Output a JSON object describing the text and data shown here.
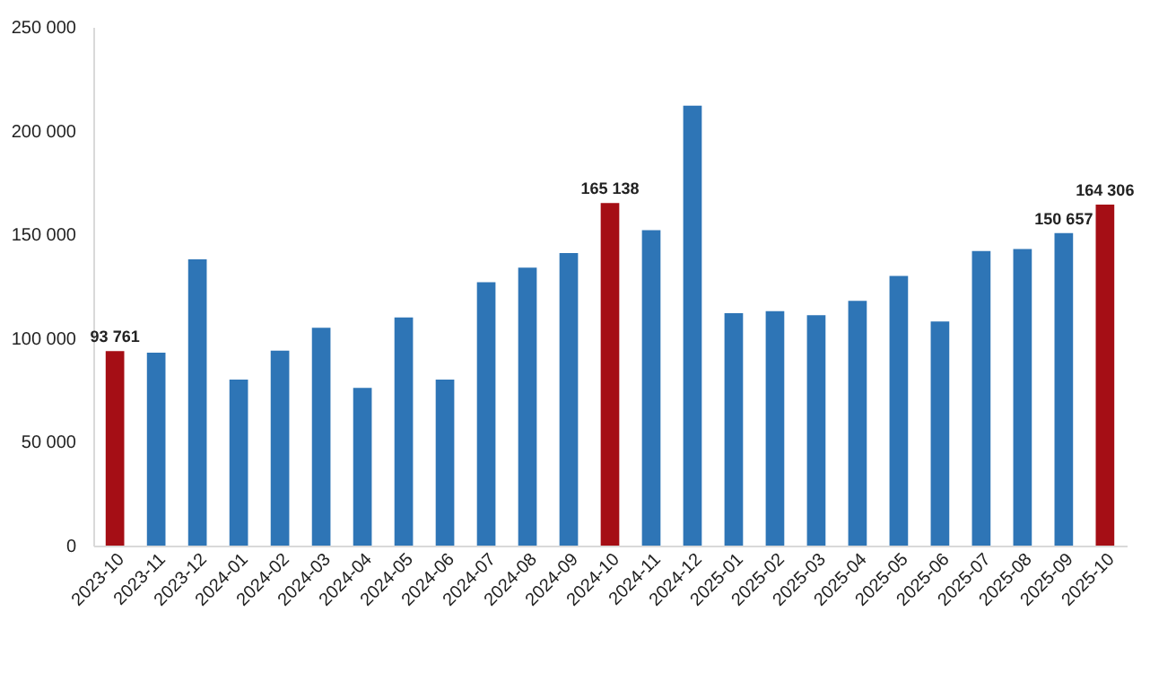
{
  "chart_data": {
    "type": "bar",
    "categories": [
      "2023-10",
      "2023-11",
      "2023-12",
      "2024-01",
      "2024-02",
      "2024-03",
      "2024-04",
      "2024-05",
      "2024-06",
      "2024-07",
      "2024-08",
      "2024-09",
      "2024-10",
      "2024-11",
      "2024-12",
      "2025-01",
      "2025-02",
      "2025-03",
      "2025-04",
      "2025-05",
      "2025-06",
      "2025-07",
      "2025-08",
      "2025-09",
      "2025-10"
    ],
    "values": [
      93761,
      93000,
      138000,
      80000,
      94000,
      105000,
      76000,
      110000,
      80000,
      127000,
      134000,
      141000,
      165138,
      152000,
      212000,
      112000,
      113000,
      111000,
      118000,
      130000,
      108000,
      142000,
      143000,
      150657,
      164306
    ],
    "colors": [
      "#a50e15",
      "#2e75b6",
      "#2e75b6",
      "#2e75b6",
      "#2e75b6",
      "#2e75b6",
      "#2e75b6",
      "#2e75b6",
      "#2e75b6",
      "#2e75b6",
      "#2e75b6",
      "#2e75b6",
      "#a50e15",
      "#2e75b6",
      "#2e75b6",
      "#2e75b6",
      "#2e75b6",
      "#2e75b6",
      "#2e75b6",
      "#2e75b6",
      "#2e75b6",
      "#2e75b6",
      "#2e75b6",
      "#2e75b6",
      "#a50e15"
    ],
    "value_labels": [
      "93 761",
      null,
      null,
      null,
      null,
      null,
      null,
      null,
      null,
      null,
      null,
      null,
      "165 138",
      null,
      null,
      null,
      null,
      null,
      null,
      null,
      null,
      null,
      null,
      "150 657",
      "164 306"
    ],
    "ylim": [
      0,
      250000
    ],
    "yticks": [
      {
        "value": 0,
        "label": "0"
      },
      {
        "value": 50000,
        "label": "50 000"
      },
      {
        "value": 100000,
        "label": "100 000"
      },
      {
        "value": 150000,
        "label": "150 000"
      },
      {
        "value": 200000,
        "label": "200 000"
      },
      {
        "value": 250000,
        "label": "250 000"
      }
    ],
    "grid": false
  }
}
